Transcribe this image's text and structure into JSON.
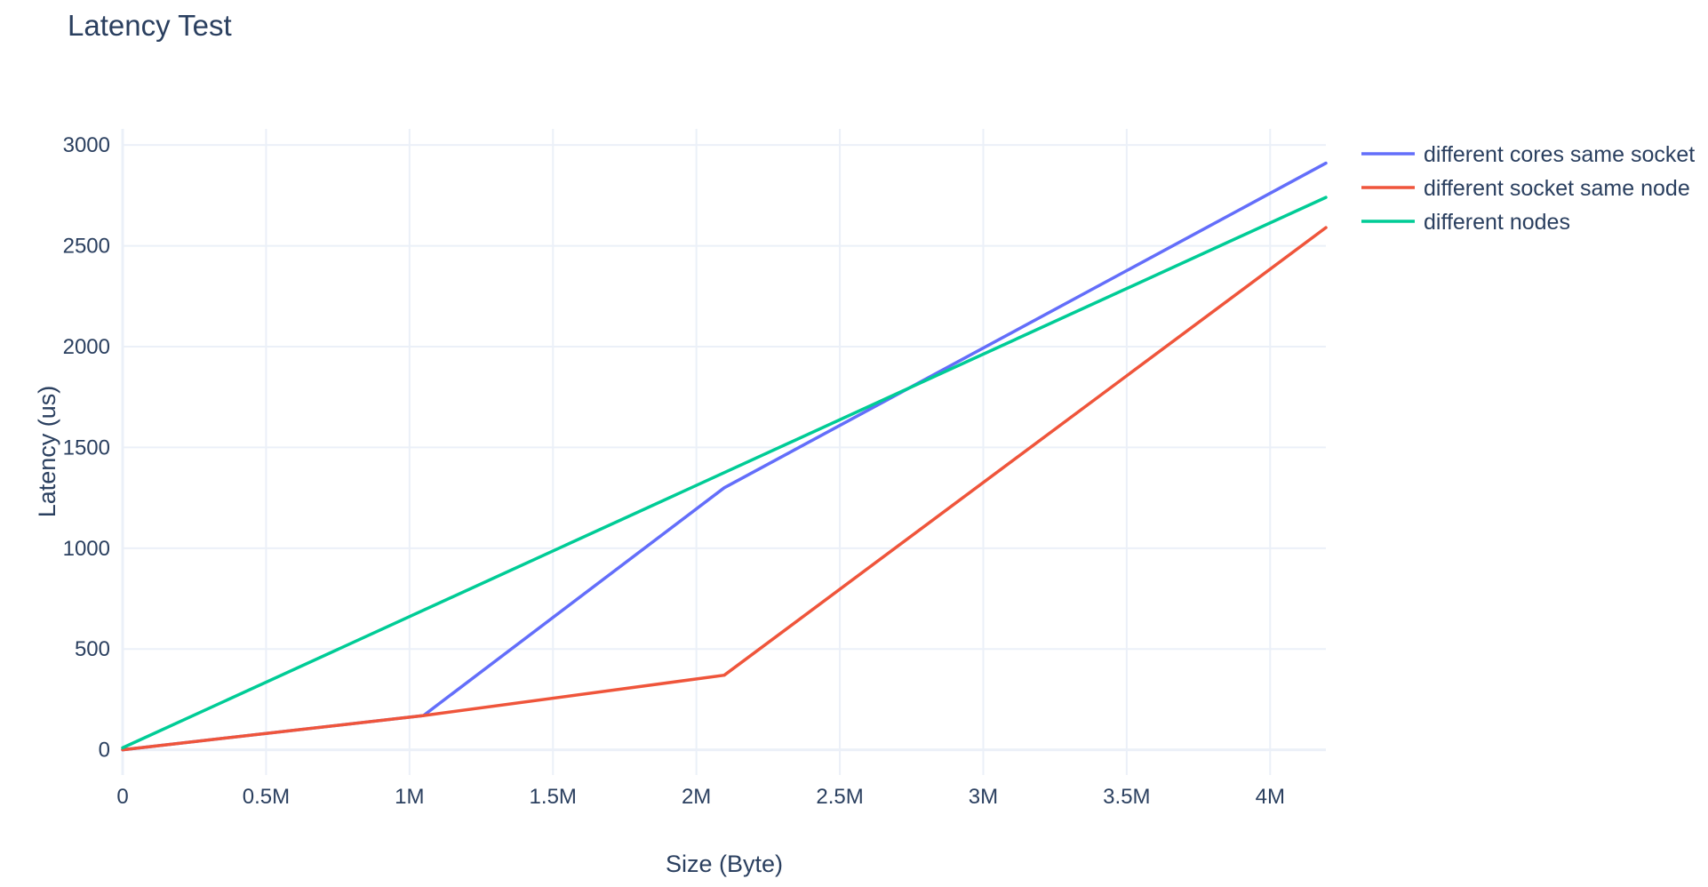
{
  "chart_data": {
    "type": "line",
    "title": "Latency Test",
    "xlabel": "Size (Byte)",
    "ylabel": "Latency (us)",
    "xlim": [
      0,
      4194304
    ],
    "ylim": [
      -125,
      3080
    ],
    "x_ticks": [
      0,
      500000,
      1000000,
      1500000,
      2000000,
      2500000,
      3000000,
      3500000,
      4000000
    ],
    "x_tick_labels": [
      "0",
      "0.5M",
      "1M",
      "1.5M",
      "2M",
      "2.5M",
      "3M",
      "3.5M",
      "4M"
    ],
    "y_ticks": [
      0,
      500,
      1000,
      1500,
      2000,
      2500,
      3000
    ],
    "y_tick_labels": [
      "0",
      "500",
      "1000",
      "1500",
      "2000",
      "2500",
      "3000"
    ],
    "grid": true,
    "legend_position": "top-right",
    "series": [
      {
        "name": "different cores same socket",
        "color": "#636efa",
        "x": [
          0,
          1048576,
          2097152,
          4194304
        ],
        "y": [
          0,
          170,
          1300,
          2910
        ]
      },
      {
        "name": "different socket same node",
        "color": "#ef553b",
        "x": [
          0,
          1048576,
          2097152,
          4194304
        ],
        "y": [
          0,
          170,
          370,
          2590
        ]
      },
      {
        "name": "different nodes",
        "color": "#00cc96",
        "x": [
          0,
          4194304
        ],
        "y": [
          10,
          2740
        ]
      }
    ]
  }
}
